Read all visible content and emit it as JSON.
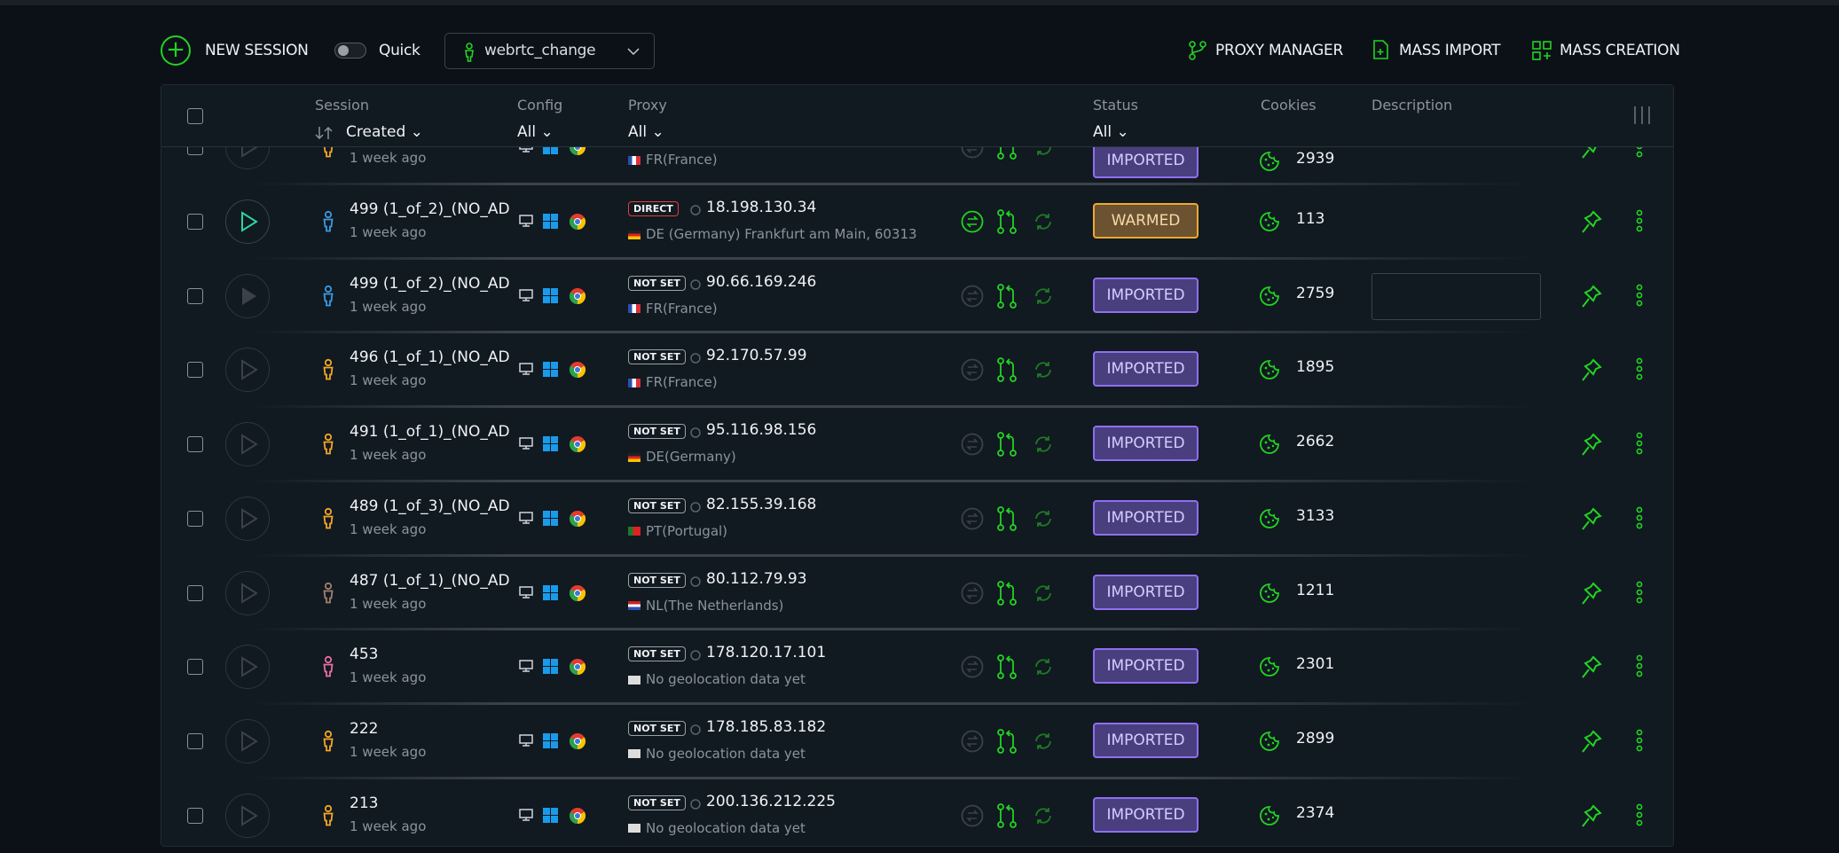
{
  "toolbar": {
    "new_session": "NEW SESSION",
    "quick_label": "Quick",
    "quick_on": false,
    "profile": "webrtc_change",
    "proxy_manager": "PROXY MANAGER",
    "mass_import": "MASS IMPORT",
    "mass_creation": "MASS CREATION"
  },
  "header": {
    "session": "Session",
    "sort": "Created",
    "config": "Config",
    "config_filter": "All",
    "proxy": "Proxy",
    "proxy_filter": "All",
    "status": "Status",
    "status_filter": "All",
    "cookies": "Cookies",
    "description": "Description"
  },
  "colors": {
    "accent": "#22d322",
    "imported": "#8f6ff0",
    "warmed": "#f0a830"
  },
  "rows": [
    {
      "name": "",
      "ago": "1 week ago",
      "person": "#f5a623",
      "badge": "",
      "ip": "",
      "geo": "FR(France)",
      "flag": "fr",
      "status": "IMPORTED",
      "cookies": "2939",
      "play": "outline",
      "swap": false
    },
    {
      "name": "499 (1_of_2)_(NO_AD",
      "ago": "1 week ago",
      "person": "#3b9ae1",
      "badge": "DIRECT",
      "ip": "18.198.130.34",
      "geo": "DE (Germany) Frankfurt am Main, 60313",
      "flag": "de",
      "status": "WARMED",
      "cookies": "113",
      "play": "active",
      "swap": true
    },
    {
      "name": "499 (1_of_2)_(NO_AD",
      "ago": "1 week ago",
      "person": "#3b9ae1",
      "badge": "NOT SET",
      "ip": "90.66.169.246",
      "geo": "FR(France)",
      "flag": "fr",
      "status": "IMPORTED",
      "cookies": "2759",
      "play": "filled",
      "swap": false,
      "desc": true
    },
    {
      "name": "496 (1_of_1)_(NO_AD",
      "ago": "1 week ago",
      "person": "#f5a623",
      "badge": "NOT SET",
      "ip": "92.170.57.99",
      "geo": "FR(France)",
      "flag": "fr",
      "status": "IMPORTED",
      "cookies": "1895",
      "play": "outline",
      "swap": false
    },
    {
      "name": "491 (1_of_1)_(NO_AD",
      "ago": "1 week ago",
      "person": "#f5a623",
      "badge": "NOT SET",
      "ip": "95.116.98.156",
      "geo": "DE(Germany)",
      "flag": "de",
      "status": "IMPORTED",
      "cookies": "2662",
      "play": "outline",
      "swap": false
    },
    {
      "name": "489 (1_of_3)_(NO_AD",
      "ago": "1 week ago",
      "person": "#f5a623",
      "badge": "NOT SET",
      "ip": "82.155.39.168",
      "geo": "PT(Portugal)",
      "flag": "pt",
      "status": "IMPORTED",
      "cookies": "3133",
      "play": "outline",
      "swap": false
    },
    {
      "name": "487 (1_of_1)_(NO_AD",
      "ago": "1 week ago",
      "person": "#a08070",
      "badge": "NOT SET",
      "ip": "80.112.79.93",
      "geo": "NL(The Netherlands)",
      "flag": "nl",
      "status": "IMPORTED",
      "cookies": "1211",
      "play": "outline",
      "swap": false
    },
    {
      "name": "453",
      "ago": "1 week ago",
      "person": "#e86fa0",
      "badge": "NOT SET",
      "ip": "178.120.17.101",
      "geo": "No geolocation data yet",
      "flag": "none",
      "status": "IMPORTED",
      "cookies": "2301",
      "play": "outline",
      "swap": false
    },
    {
      "name": "222",
      "ago": "1 week ago",
      "person": "#f5a623",
      "badge": "NOT SET",
      "ip": "178.185.83.182",
      "geo": "No geolocation data yet",
      "flag": "none",
      "status": "IMPORTED",
      "cookies": "2899",
      "play": "outline",
      "swap": false
    },
    {
      "name": "213",
      "ago": "1 week ago",
      "person": "#f5a623",
      "badge": "NOT SET",
      "ip": "200.136.212.225",
      "geo": "No geolocation data yet",
      "flag": "none",
      "status": "IMPORTED",
      "cookies": "2374",
      "play": "outline",
      "swap": false
    }
  ]
}
